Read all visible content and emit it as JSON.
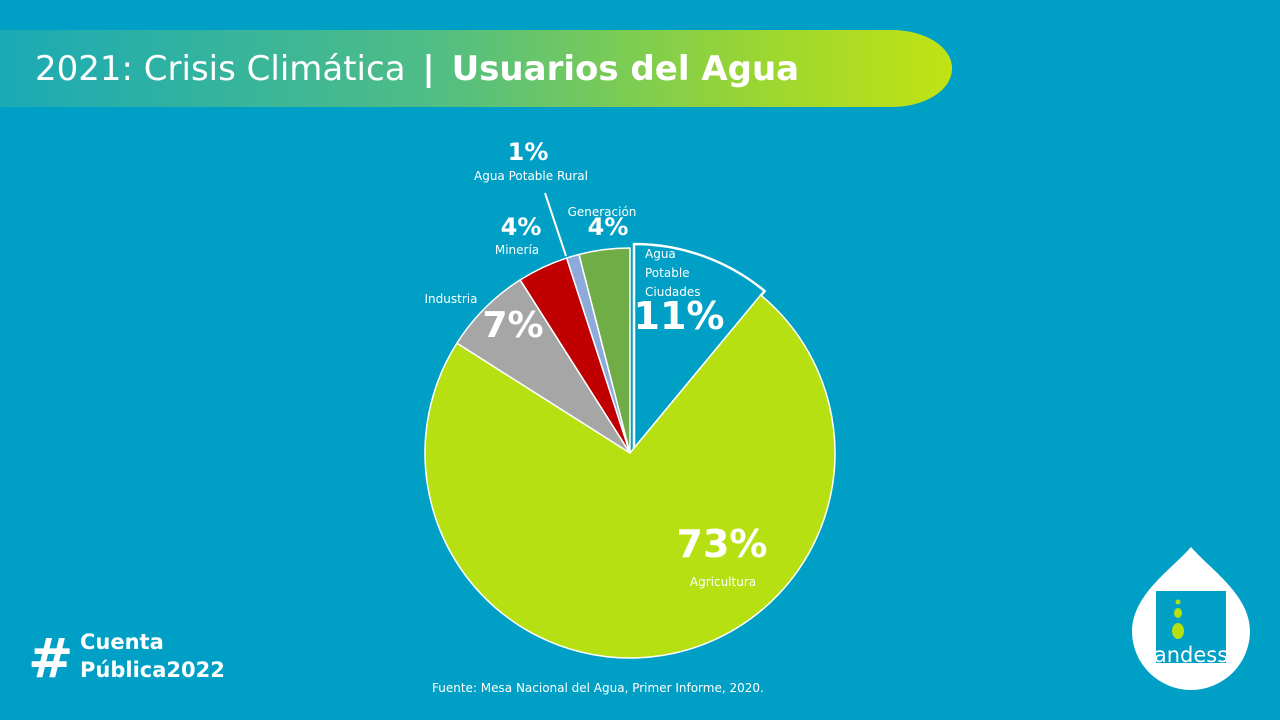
{
  "header": {
    "title_main": "2021: Crisis Climática",
    "title_sep": "|",
    "title_bold": "Usuarios del Agua"
  },
  "chart_data": {
    "type": "pie",
    "slices": [
      {
        "label_lines": [
          "Agua",
          "Potable",
          "Ciudades"
        ],
        "value": 11,
        "value_label": "11%",
        "color": "#00a0c6",
        "outlined": true,
        "exploded": true
      },
      {
        "label_lines": [
          "Agricultura"
        ],
        "value": 73,
        "value_label": "73%",
        "color": "#b6e012"
      },
      {
        "label_lines": [
          "Industria"
        ],
        "value": 7,
        "value_label": "7%",
        "color": "#a6a6a6"
      },
      {
        "label_lines": [
          "Minería"
        ],
        "value": 4,
        "value_label": "4%",
        "color": "#c00000"
      },
      {
        "label_lines": [
          "Agua Potable Rural"
        ],
        "value": 1,
        "value_label": "1%",
        "color": "#8eaadb"
      },
      {
        "label_lines": [
          "Generación"
        ],
        "value": 4,
        "value_label": "4%",
        "color": "#70ad47"
      }
    ]
  },
  "footer": {
    "hashtag_symbol": "#",
    "hashtag_line1": "Cuenta",
    "hashtag_line2": "Pública2022",
    "source": "Fuente: Mesa Nacional del Agua, Primer Informe, 2020.",
    "logo_text": "andess"
  }
}
